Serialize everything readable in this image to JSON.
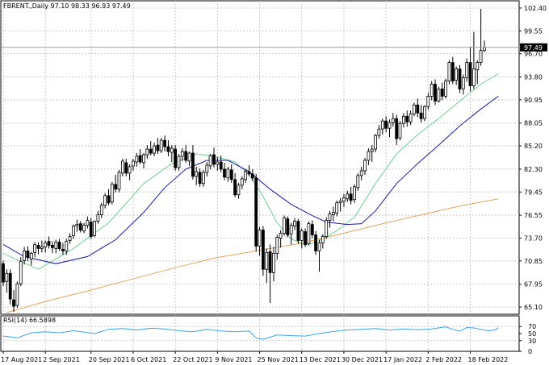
{
  "main_header": {
    "symbol": "FBRENT.",
    "timeframe": "Daily",
    "ohlc": "97.10 98.33 96.93 97.49",
    "text": "FBRENT.,Daily  97.10 98.33 96.93 97.49"
  },
  "rsi_header": {
    "text": "RSI(14) 66.5898"
  },
  "current_price_label": "97.49",
  "colors": {
    "candle_bull_fill": "#ffffff",
    "candle_bear_fill": "#000000",
    "candle_outline": "#000000",
    "ma_fast": "#6fcf97",
    "ma_mid": "#1a1aa6",
    "ma_slow": "#e6a35c",
    "rsi_line": "#3ba3e6",
    "price_marker_bg": "#000000",
    "price_marker_text": "#ffffff"
  },
  "chart_data": {
    "type": "candlestick",
    "price_axis": {
      "ticks": [
        "102.40",
        "99.55",
        "96.70",
        "93.80",
        "90.95",
        "88.05",
        "85.20",
        "82.30",
        "79.45",
        "76.55",
        "73.70",
        "70.85",
        "67.95",
        "65.10"
      ],
      "ylim": [
        64.2,
        103.3
      ]
    },
    "rsi_axis": {
      "ticks": [
        "70",
        "50",
        "30",
        "0"
      ],
      "ylim": [
        0,
        100
      ]
    },
    "x_axis": {
      "labels": [
        "17 Aug 2021",
        "2 Sep 2021",
        "20 Sep 2021",
        "6 Oct 2021",
        "22 Oct 2021",
        "9 Nov 2021",
        "25 Nov 2021",
        "13 Dec 2021",
        "30 Dec 2021",
        "17 Jan 2022",
        "2 Feb 2022",
        "18 Feb 2022"
      ],
      "label_bar_index": [
        0,
        12,
        25,
        37,
        49,
        61,
        73,
        85,
        97,
        109,
        121,
        133
      ]
    },
    "candles": [
      [
        70.5,
        70.9,
        67.7,
        68.2
      ],
      [
        68.3,
        69.8,
        66.9,
        69.3
      ],
      [
        69.3,
        69.8,
        65.4,
        66.1
      ],
      [
        66.0,
        67.2,
        64.5,
        65.2
      ],
      [
        65.3,
        68.3,
        65.0,
        68.0
      ],
      [
        68.0,
        71.3,
        67.7,
        70.8
      ],
      [
        70.9,
        72.6,
        70.4,
        72.1
      ],
      [
        72.1,
        72.7,
        70.8,
        71.3
      ],
      [
        71.1,
        72.0,
        70.3,
        71.8
      ],
      [
        71.9,
        73.2,
        71.3,
        72.9
      ],
      [
        72.8,
        73.2,
        71.7,
        72.4
      ],
      [
        72.4,
        73.4,
        71.9,
        72.6
      ],
      [
        72.6,
        73.4,
        71.9,
        73.1
      ],
      [
        73.3,
        73.9,
        72.4,
        72.8
      ],
      [
        72.8,
        73.3,
        71.8,
        72.5
      ],
      [
        72.4,
        73.5,
        71.8,
        73.2
      ],
      [
        73.2,
        73.6,
        72.1,
        72.4
      ],
      [
        72.3,
        73.1,
        71.6,
        72.1
      ],
      [
        72.1,
        73.6,
        71.6,
        73.3
      ],
      [
        73.4,
        74.3,
        73.0,
        73.9
      ],
      [
        74.0,
        75.4,
        73.6,
        75.2
      ],
      [
        75.2,
        76.0,
        74.5,
        75.4
      ],
      [
        75.5,
        75.8,
        74.4,
        74.7
      ],
      [
        74.6,
        75.6,
        74.3,
        75.3
      ],
      [
        75.3,
        76.4,
        74.9,
        75.9
      ],
      [
        75.7,
        76.2,
        73.6,
        73.9
      ],
      [
        74.0,
        75.9,
        73.8,
        75.8
      ],
      [
        75.8,
        77.1,
        75.5,
        76.6
      ],
      [
        76.6,
        78.1,
        76.2,
        77.8
      ],
      [
        77.8,
        79.3,
        77.4,
        79.0
      ],
      [
        79.0,
        79.8,
        77.8,
        78.1
      ],
      [
        78.2,
        80.7,
        77.9,
        80.4
      ],
      [
        80.4,
        81.6,
        79.4,
        79.8
      ],
      [
        79.8,
        82.2,
        79.4,
        81.9
      ],
      [
        81.8,
        83.6,
        81.4,
        83.3
      ],
      [
        83.1,
        83.6,
        81.4,
        81.8
      ],
      [
        81.8,
        82.9,
        80.9,
        82.6
      ],
      [
        82.7,
        83.6,
        82.1,
        83.3
      ],
      [
        83.2,
        84.3,
        82.6,
        83.9
      ],
      [
        84.0,
        84.8,
        82.9,
        83.2
      ],
      [
        83.1,
        84.3,
        82.4,
        84.1
      ],
      [
        84.1,
        85.3,
        83.6,
        84.8
      ],
      [
        84.8,
        85.8,
        84.0,
        84.3
      ],
      [
        84.3,
        85.6,
        83.9,
        85.2
      ],
      [
        85.3,
        86.2,
        84.2,
        84.6
      ],
      [
        84.6,
        86.2,
        84.3,
        85.9
      ],
      [
        85.9,
        86.5,
        84.5,
        85.1
      ],
      [
        85.1,
        85.9,
        83.9,
        84.5
      ],
      [
        84.4,
        85.3,
        83.2,
        84.9
      ],
      [
        84.8,
        85.3,
        82.1,
        82.5
      ],
      [
        82.5,
        84.2,
        82.1,
        83.9
      ],
      [
        83.9,
        84.9,
        83.3,
        84.5
      ],
      [
        84.5,
        85.3,
        83.1,
        83.4
      ],
      [
        83.3,
        84.5,
        82.7,
        84.3
      ],
      [
        84.3,
        85.3,
        81.0,
        81.4
      ],
      [
        81.4,
        82.6,
        80.3,
        82.0
      ],
      [
        81.9,
        82.4,
        80.1,
        80.5
      ],
      [
        80.5,
        82.2,
        80.1,
        81.9
      ],
      [
        81.9,
        83.2,
        81.4,
        82.8
      ],
      [
        82.7,
        84.2,
        82.3,
        84.0
      ],
      [
        84.1,
        85.0,
        82.5,
        82.9
      ],
      [
        82.9,
        83.8,
        82.1,
        83.2
      ],
      [
        83.2,
        84.0,
        81.9,
        82.3
      ],
      [
        82.3,
        83.1,
        80.9,
        81.3
      ],
      [
        81.2,
        82.6,
        80.7,
        82.3
      ],
      [
        82.2,
        82.9,
        80.6,
        81.0
      ],
      [
        81.0,
        81.8,
        78.8,
        79.1
      ],
      [
        79.1,
        80.6,
        78.6,
        80.3
      ],
      [
        80.3,
        81.4,
        79.8,
        81.1
      ],
      [
        81.0,
        82.3,
        80.6,
        82.0
      ],
      [
        82.0,
        82.8,
        81.4,
        81.7
      ],
      [
        81.7,
        82.3,
        80.8,
        81.2
      ],
      [
        81.2,
        81.7,
        72.0,
        72.7
      ],
      [
        72.7,
        75.1,
        71.5,
        74.7
      ],
      [
        74.7,
        75.2,
        69.0,
        69.8
      ],
      [
        69.8,
        72.4,
        68.1,
        71.9
      ],
      [
        72.0,
        72.9,
        65.6,
        69.4
      ],
      [
        69.4,
        72.6,
        68.3,
        71.8
      ],
      [
        71.8,
        74.1,
        71.0,
        73.8
      ],
      [
        73.7,
        74.7,
        72.5,
        74.3
      ],
      [
        74.3,
        76.5,
        74.0,
        76.2
      ],
      [
        76.1,
        76.4,
        73.8,
        74.1
      ],
      [
        74.2,
        75.6,
        72.9,
        75.3
      ],
      [
        75.2,
        76.2,
        74.7,
        75.8
      ],
      [
        75.8,
        76.1,
        73.0,
        73.4
      ],
      [
        73.4,
        74.9,
        72.4,
        74.6
      ],
      [
        74.5,
        74.9,
        72.6,
        72.9
      ],
      [
        73.0,
        75.8,
        72.8,
        75.5
      ],
      [
        75.4,
        75.9,
        73.7,
        74.1
      ],
      [
        74.1,
        74.6,
        71.6,
        72.1
      ],
      [
        72.1,
        73.5,
        69.5,
        73.1
      ],
      [
        73.1,
        74.2,
        72.4,
        73.9
      ],
      [
        73.9,
        76.3,
        73.6,
        75.9
      ],
      [
        75.9,
        77.1,
        75.0,
        76.7
      ],
      [
        76.6,
        77.6,
        75.8,
        76.9
      ],
      [
        76.8,
        78.4,
        76.4,
        78.1
      ],
      [
        78.1,
        78.7,
        77.0,
        78.3
      ],
      [
        78.3,
        79.2,
        77.6,
        78.7
      ],
      [
        78.6,
        79.6,
        78.2,
        79.2
      ],
      [
        79.2,
        80.1,
        77.9,
        78.4
      ],
      [
        78.5,
        80.4,
        78.1,
        80.1
      ],
      [
        80.0,
        81.8,
        79.6,
        81.5
      ],
      [
        81.5,
        82.6,
        80.9,
        82.1
      ],
      [
        82.1,
        83.7,
        81.6,
        83.4
      ],
      [
        83.4,
        84.9,
        82.8,
        84.5
      ],
      [
        84.5,
        85.3,
        83.2,
        84.8
      ],
      [
        84.8,
        86.7,
        84.4,
        86.5
      ],
      [
        86.5,
        87.8,
        86.1,
        87.3
      ],
      [
        87.3,
        88.6,
        86.6,
        88.3
      ],
      [
        88.3,
        88.9,
        86.9,
        87.4
      ],
      [
        87.4,
        88.5,
        86.3,
        88.1
      ],
      [
        88.1,
        89.3,
        87.6,
        88.6
      ],
      [
        88.6,
        89.1,
        85.3,
        86.1
      ],
      [
        86.2,
        88.3,
        85.9,
        88.0
      ],
      [
        88.0,
        89.3,
        87.5,
        88.9
      ],
      [
        88.9,
        89.6,
        87.6,
        88.2
      ],
      [
        88.2,
        89.6,
        87.8,
        89.2
      ],
      [
        89.2,
        90.6,
        88.9,
        90.3
      ],
      [
        90.3,
        91.1,
        88.8,
        89.3
      ],
      [
        89.3,
        90.3,
        88.1,
        88.6
      ],
      [
        88.6,
        90.3,
        88.3,
        90.1
      ],
      [
        90.1,
        91.8,
        89.7,
        91.4
      ],
      [
        91.4,
        93.3,
        90.9,
        92.9
      ],
      [
        92.9,
        93.5,
        90.3,
        90.8
      ],
      [
        90.8,
        92.6,
        90.6,
        92.3
      ],
      [
        92.3,
        93.1,
        90.9,
        91.4
      ],
      [
        91.4,
        93.6,
        91.1,
        93.3
      ],
      [
        93.3,
        95.9,
        92.9,
        95.6
      ],
      [
        95.6,
        96.3,
        92.9,
        93.3
      ],
      [
        93.4,
        95.1,
        92.8,
        94.8
      ],
      [
        94.8,
        95.3,
        91.8,
        92.3
      ],
      [
        92.3,
        94.1,
        91.6,
        93.7
      ],
      [
        93.7,
        96.1,
        93.2,
        95.6
      ],
      [
        95.6,
        97.6,
        92.0,
        92.7
      ],
      [
        92.7,
        99.4,
        92.3,
        94.8
      ],
      [
        94.7,
        95.9,
        92.9,
        95.6
      ],
      [
        95.6,
        102.3,
        95.2,
        97.1
      ],
      [
        97.1,
        98.33,
        96.93,
        97.49
      ]
    ],
    "series": [
      {
        "name": "",
        "color": "#6fcf97",
        "values": [
          [
            0,
            71.8
          ],
          [
            10,
            69.8
          ],
          [
            20,
            72.4
          ],
          [
            30,
            75.6
          ],
          [
            40,
            80.5
          ],
          [
            48,
            83.0
          ],
          [
            55,
            84.2
          ],
          [
            60,
            83.9
          ],
          [
            66,
            83.2
          ],
          [
            70,
            81.6
          ],
          [
            74,
            78.9
          ],
          [
            78,
            75.6
          ],
          [
            82,
            73.6
          ],
          [
            86,
            72.8
          ],
          [
            90,
            73.4
          ],
          [
            95,
            74.6
          ],
          [
            100,
            76.3
          ],
          [
            106,
            80.5
          ],
          [
            112,
            84.2
          ],
          [
            118,
            86.6
          ],
          [
            124,
            88.6
          ],
          [
            130,
            90.8
          ],
          [
            136,
            92.9
          ],
          [
            141,
            94.2
          ]
        ]
      },
      {
        "name": "",
        "color": "#1a1aa6",
        "values": [
          [
            0,
            72.9
          ],
          [
            6,
            71.4
          ],
          [
            15,
            70.5
          ],
          [
            24,
            71.4
          ],
          [
            32,
            73.5
          ],
          [
            40,
            76.9
          ],
          [
            46,
            80.0
          ],
          [
            52,
            82.3
          ],
          [
            58,
            83.4
          ],
          [
            64,
            83.4
          ],
          [
            70,
            82.0
          ],
          [
            76,
            79.8
          ],
          [
            82,
            77.9
          ],
          [
            88,
            76.5
          ],
          [
            92,
            75.7
          ],
          [
            98,
            75.4
          ],
          [
            102,
            75.5
          ],
          [
            106,
            77.1
          ],
          [
            112,
            80.5
          ],
          [
            118,
            83.0
          ],
          [
            124,
            85.3
          ],
          [
            130,
            87.7
          ],
          [
            136,
            89.8
          ],
          [
            141,
            91.4
          ]
        ]
      },
      {
        "name": "",
        "color": "#e6a35c",
        "values": [
          [
            1,
            64.4
          ],
          [
            12,
            65.8
          ],
          [
            24,
            67.1
          ],
          [
            36,
            68.5
          ],
          [
            48,
            69.9
          ],
          [
            60,
            71.2
          ],
          [
            72,
            72.1
          ],
          [
            84,
            73.0
          ],
          [
            96,
            74.2
          ],
          [
            108,
            75.5
          ],
          [
            120,
            76.7
          ],
          [
            130,
            77.7
          ],
          [
            141,
            78.6
          ]
        ]
      }
    ],
    "rsi": {
      "name": "RSI(14)",
      "last": 66.5898,
      "values": [
        [
          0,
          43
        ],
        [
          4,
          38
        ],
        [
          8,
          52
        ],
        [
          12,
          55
        ],
        [
          16,
          52
        ],
        [
          20,
          58
        ],
        [
          26,
          50
        ],
        [
          30,
          62
        ],
        [
          34,
          64
        ],
        [
          38,
          60
        ],
        [
          42,
          65
        ],
        [
          46,
          63
        ],
        [
          50,
          58
        ],
        [
          54,
          55
        ],
        [
          58,
          62
        ],
        [
          62,
          57
        ],
        [
          66,
          55
        ],
        [
          70,
          57
        ],
        [
          72,
          38
        ],
        [
          74,
          34
        ],
        [
          76,
          40
        ],
        [
          78,
          46
        ],
        [
          82,
          44
        ],
        [
          86,
          43
        ],
        [
          90,
          50
        ],
        [
          94,
          56
        ],
        [
          98,
          60
        ],
        [
          102,
          62
        ],
        [
          106,
          64
        ],
        [
          110,
          60
        ],
        [
          114,
          63
        ],
        [
          118,
          61
        ],
        [
          122,
          63
        ],
        [
          126,
          69
        ],
        [
          128,
          62
        ],
        [
          130,
          57
        ],
        [
          132,
          67
        ],
        [
          134,
          66
        ],
        [
          136,
          62
        ],
        [
          138,
          58
        ],
        [
          140,
          60
        ],
        [
          141,
          66.6
        ]
      ]
    }
  }
}
